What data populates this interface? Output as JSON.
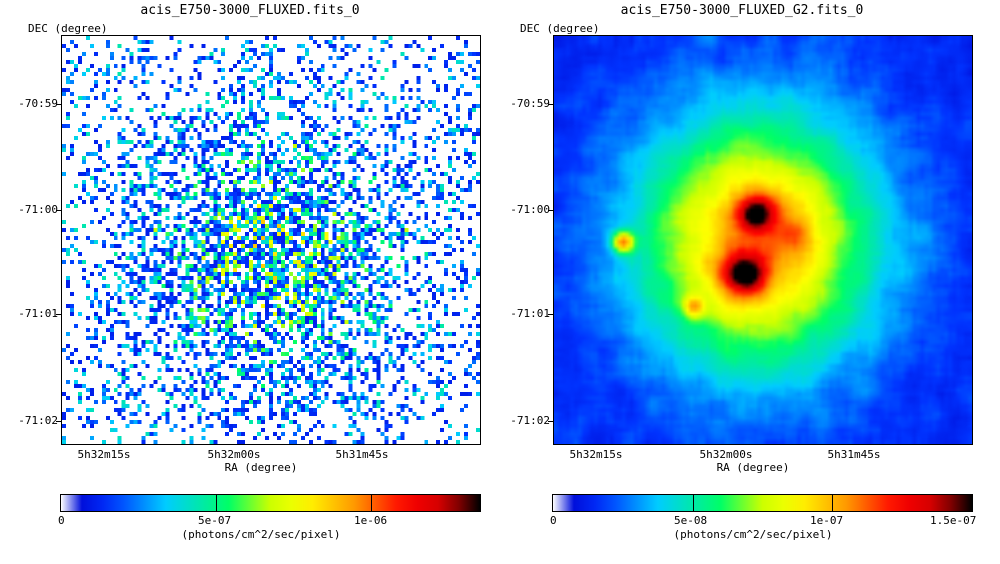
{
  "chart_data": [
    {
      "type": "heatmap",
      "title": "acis_E750-3000_FLUXED.fits_0",
      "xlabel": "RA (degree)",
      "ylabel": "DEC (degree)",
      "x_tick_labels": [
        "5h32m15s",
        "5h32m00s",
        "5h31m45s"
      ],
      "y_tick_labels": [
        "-70:59",
        "-71:00",
        "-71:01",
        "-71:02"
      ],
      "colorbar": {
        "min": 0,
        "max": 1.35e-06,
        "tick_labels": [
          "0",
          "5e-07",
          "1e-06"
        ],
        "tick_values": [
          0,
          5e-07,
          1e-06
        ],
        "unit": "(photons/cm^2/sec/pixel)"
      },
      "style": "sparse pixel counts"
    },
    {
      "type": "heatmap",
      "title": "acis_E750-3000_FLUXED_G2.fits_0",
      "xlabel": "RA (degree)",
      "ylabel": "DEC (degree)",
      "x_tick_labels": [
        "5h32m15s",
        "5h32m00s",
        "5h31m45s"
      ],
      "y_tick_labels": [
        "-70:59",
        "-71:00",
        "-71:01",
        "-71:02"
      ],
      "colorbar": {
        "min": 0,
        "max": 1.5e-07,
        "tick_labels": [
          "0",
          "5e-08",
          "1e-07",
          "1.5e-07"
        ],
        "tick_values": [
          0,
          5e-08,
          1e-07,
          1.5e-07
        ],
        "unit": "(photons/cm^2/sec/pixel)"
      },
      "style": "smoothed"
    }
  ],
  "colormap": [
    "#ffffff",
    "#0000cc",
    "#0033ff",
    "#00ccff",
    "#00ff66",
    "#ccff00",
    "#ffff00",
    "#ff9900",
    "#ff0000",
    "#cc0000",
    "#000000"
  ]
}
